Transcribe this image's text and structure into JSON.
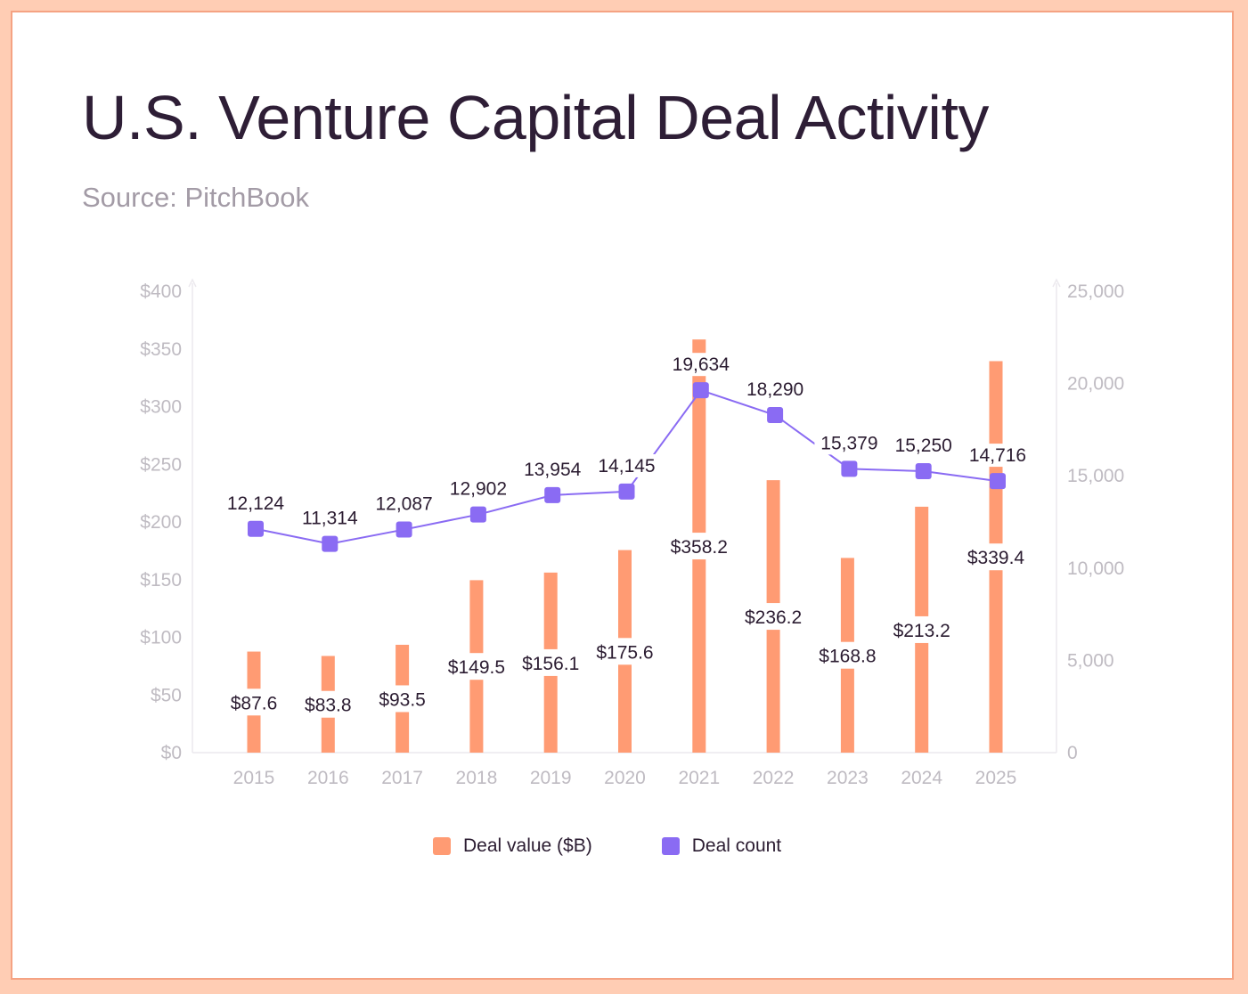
{
  "header": {
    "title": "U.S. Venture Capital Deal Activity",
    "subtitle": "Source: PitchBook"
  },
  "colors": {
    "bar": "#ff9b73",
    "line": "#8a6bf3",
    "marker": "#8a6bf3",
    "axis_text": "#bfbbc2",
    "label_text": "#2b1c31"
  },
  "chart_data": {
    "type": "bar",
    "title": "U.S. Venture Capital Deal Activity",
    "subtitle": "Source: PitchBook",
    "categories": [
      "2015",
      "2016",
      "2017",
      "2018",
      "2019",
      "2020",
      "2021",
      "2022",
      "2023",
      "2024",
      "2025"
    ],
    "series": [
      {
        "name": "Deal value ($B)",
        "type": "bar",
        "axis": "left",
        "values": [
          87.6,
          83.8,
          93.5,
          149.5,
          156.1,
          175.6,
          358.2,
          236.2,
          168.8,
          213.2,
          339.4
        ],
        "labels": [
          "$87.6",
          "$83.8",
          "$93.5",
          "$149.5",
          "$156.1",
          "$175.6",
          "$358.2",
          "$236.2",
          "$168.8",
          "$213.2",
          "$339.4"
        ]
      },
      {
        "name": "Deal count",
        "type": "line",
        "axis": "right",
        "values": [
          12124,
          11314,
          12087,
          12902,
          13954,
          14145,
          19634,
          18290,
          15379,
          15250,
          14716
        ],
        "labels": [
          "12,124",
          "11,314",
          "12,087",
          "12,902",
          "13,954",
          "14,145",
          "19,634",
          "18,290",
          "15,379",
          "15,250",
          "14,716"
        ]
      }
    ],
    "y_left": {
      "range": [
        0,
        400
      ],
      "ticks": [
        0,
        50,
        100,
        150,
        200,
        250,
        300,
        350,
        400
      ],
      "tick_labels": [
        "$0",
        "$50",
        "$100",
        "$150",
        "$200",
        "$250",
        "$300",
        "$350",
        "$400"
      ]
    },
    "y_right": {
      "range": [
        0,
        25000
      ],
      "ticks": [
        0,
        5000,
        10000,
        15000,
        20000,
        25000
      ],
      "tick_labels": [
        "0",
        "5,000",
        "10,000",
        "15,000",
        "20,000",
        "25,000"
      ]
    },
    "grid": false,
    "legend": "bottom-center"
  },
  "legend": {
    "items": [
      {
        "label": "Deal value ($B)",
        "color": "#ff9b73"
      },
      {
        "label": "Deal count",
        "color": "#8a6bf3"
      }
    ]
  }
}
